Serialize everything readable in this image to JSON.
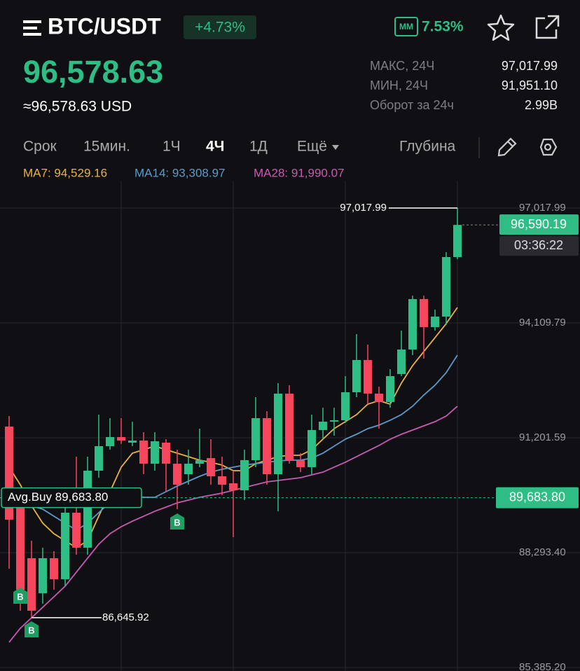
{
  "header": {
    "symbol": "BTC/USDT",
    "change": "+4.73%",
    "mm_badge": "MM",
    "mm_value": "7.53%",
    "price": "96,578.63",
    "price_usd": "≈96,578.63 USD",
    "stats": [
      {
        "label": "МАКС, 24Ч",
        "value": "97,017.99"
      },
      {
        "label": "МИН, 24Ч",
        "value": "91,951.10"
      },
      {
        "label": "Оборот за 24ч",
        "value": "2.99B"
      }
    ]
  },
  "tabs": {
    "items": [
      "Срок",
      "15мин.",
      "1Ч",
      "4Ч",
      "1Д",
      "Ещё"
    ],
    "active": "4Ч",
    "depth": "Глубина"
  },
  "chart_data": {
    "type": "candlestick",
    "categories": [
      null,
      null,
      null,
      null,
      null,
      null,
      null,
      null,
      null,
      null,
      null,
      null,
      null,
      null,
      null,
      null,
      null,
      null,
      null,
      null,
      null,
      null,
      null,
      null,
      null,
      null,
      null,
      null,
      null,
      null,
      null,
      null,
      null,
      null,
      null,
      null,
      null,
      null,
      null,
      null,
      null
    ],
    "open": [
      91485,
      89481,
      88152,
      87265,
      88152,
      87620,
      89304,
      88418,
      90368,
      90989,
      91219,
      91077,
      91131,
      90545,
      91077,
      90545,
      90279,
      90545,
      90687,
      90226,
      90049,
      89872,
      90634,
      91698,
      90279,
      92319,
      90634,
      90457,
      91397,
      91609,
      91645,
      92354,
      93170,
      92319,
      92106,
      92815,
      93436,
      94713,
      94003,
      94269,
      95777
    ],
    "high": [
      91751,
      89836,
      88595,
      88418,
      88330,
      89481,
      90723,
      90723,
      91787,
      91698,
      91698,
      91609,
      91343,
      91343,
      91166,
      90900,
      90900,
      91432,
      91166,
      90723,
      90368,
      90900,
      92230,
      91875,
      92585,
      92532,
      90811,
      91787,
      91964,
      91964,
      92762,
      93826,
      93560,
      92496,
      92939,
      93915,
      94801,
      94801,
      94447,
      95901,
      97017.99
    ],
    "low": [
      87886,
      86822,
      86645.92,
      86999,
      87354,
      87443,
      88241,
      88241,
      90190,
      90900,
      91042,
      90989,
      90279,
      90368,
      89836,
      89393,
      90013,
      90457,
      90013,
      89748,
      88684,
      89624,
      90457,
      90013,
      89340,
      90545,
      90332,
      90279,
      91166,
      91255,
      91574,
      92230,
      92053,
      91432,
      91964,
      92762,
      93294,
      93205,
      93915,
      94057,
      95723
    ],
    "close": [
      89127,
      87354,
      86822,
      88152,
      87620,
      89304,
      88418,
      90368,
      90989,
      91219,
      91131,
      91131,
      90545,
      91113,
      90545,
      90013,
      90545,
      90634,
      90226,
      90013,
      89872,
      90634,
      91698,
      90279,
      92319,
      90634,
      90457,
      91397,
      91609,
      91645,
      92354,
      93170,
      92319,
      92106,
      92762,
      93436,
      94713,
      94003,
      94269,
      95777,
      96590.19
    ],
    "up_color": "#2ebd85",
    "down_color": "#f6465d",
    "ma_lines": [
      {
        "legend": "MA7: 94,529.16",
        "color": "#e9b342",
        "values": [
          90457,
          90013,
          89481,
          89039,
          88772,
          88595,
          88418,
          88595,
          89215,
          89836,
          90457,
          90811,
          90900,
          90989,
          90900,
          90811,
          90723,
          90634,
          90581,
          90510,
          90368,
          90368,
          90545,
          90634,
          90723,
          90758,
          90758,
          90900,
          91166,
          91432,
          91609,
          91787,
          92053,
          92141,
          92053,
          92585,
          93028,
          93383,
          93737,
          94092,
          94500
        ]
      },
      {
        "legend": "MA14: 93,308.97",
        "color": "#5b9bc8",
        "values": [
          89836,
          89748,
          89481,
          89393,
          89215,
          89039,
          88861,
          89039,
          89304,
          89570,
          89694,
          89748,
          89694,
          89694,
          89836,
          89978,
          90102,
          90226,
          90332,
          90404,
          90457,
          90510,
          90545,
          90581,
          90616,
          90634,
          90634,
          90687,
          90811,
          90989,
          91166,
          91290,
          91432,
          91521,
          91645,
          91787,
          92000,
          92283,
          92532,
          92851,
          93294
        ]
      },
      {
        "legend": "MA28: 91,990.07",
        "color": "#c85bb0",
        "values": [
          86024,
          86378,
          86644,
          86910,
          87176,
          87443,
          87797,
          88152,
          88506,
          88772,
          88949,
          89091,
          89215,
          89340,
          89446,
          89553,
          89624,
          89694,
          89748,
          89801,
          89872,
          89943,
          90013,
          90084,
          90120,
          90155,
          90190,
          90261,
          90332,
          90457,
          90581,
          90723,
          90865,
          91006,
          91166,
          91290,
          91397,
          91503,
          91609,
          91751,
          92000
        ]
      }
    ],
    "ylim": [
      85296,
      97710
    ],
    "yticks": [
      {
        "value": 97017.99,
        "label": "97,017.99"
      },
      {
        "value": 94109.79,
        "label": "94,109.79"
      },
      {
        "value": 91201.59,
        "label": "91,201.59"
      },
      {
        "value": 88293.4,
        "label": "88,293.40"
      },
      {
        "value": 85385.2,
        "label": "85,385.20"
      }
    ],
    "grid": true,
    "high_label": {
      "value": 97017.99,
      "label": "97,017.99"
    },
    "low_label": {
      "value": 86645.92,
      "label": "86,645.92"
    },
    "last_price": {
      "value": 96590.19,
      "label": "96,590.19",
      "countdown": "03:36:22"
    },
    "avg_buy": {
      "value": 89683.8,
      "label": "Avg.Buy 89,683.80",
      "value_label": "89,683.80"
    },
    "buy_markers": [
      "B",
      "B",
      "B"
    ]
  }
}
